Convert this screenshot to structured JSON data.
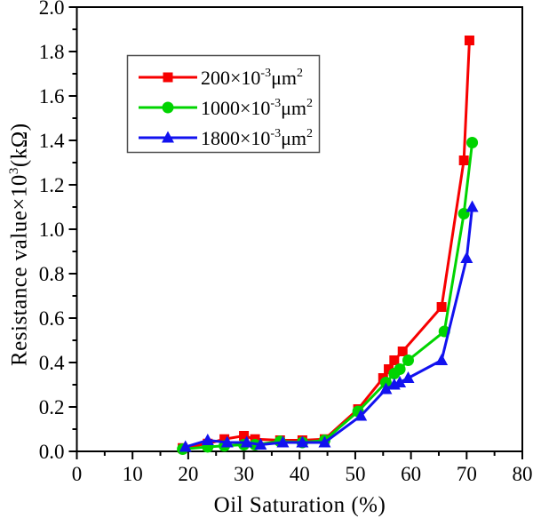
{
  "figure": {
    "background": "#ffffff",
    "frame_color": "#000000"
  },
  "chart_data": {
    "type": "line",
    "title": "",
    "xlabel": "Oil Saturation (%)",
    "ylabel": "Resistance value×10³(kΩ)",
    "ylabel_parts": {
      "prefix": "Resistance value×10",
      "sup": "3",
      "suffix": "(kΩ)"
    },
    "xlim": [
      0,
      80
    ],
    "ylim": [
      0.0,
      2.0
    ],
    "x_major_step": 10,
    "x_minor_step": 5,
    "y_major_step": 0.2,
    "y_minor_step": 0.1,
    "x_tick_labels": [
      "0",
      "10",
      "20",
      "30",
      "40",
      "50",
      "60",
      "70",
      "80"
    ],
    "y_tick_labels": [
      "0.0",
      "0.2",
      "0.4",
      "0.6",
      "0.8",
      "1.0",
      "1.2",
      "1.4",
      "1.6",
      "1.8",
      "2.0"
    ],
    "grid": false,
    "legend_position": "upper-left-inside",
    "series": [
      {
        "id": "perm200",
        "name": "200×10⁻³μm²",
        "label_parts": {
          "prefix": "200×10",
          "exp": "-3",
          "unit": "μm",
          "unit_exp": "2"
        },
        "color": "#f70000",
        "marker": "square",
        "x": [
          19,
          23.5,
          26.5,
          30,
          32,
          36.5,
          40.5,
          44.5,
          50.5,
          55,
          56,
          57,
          58.5,
          65.5,
          69.5,
          70.5
        ],
        "y": [
          0.015,
          0.035,
          0.055,
          0.07,
          0.055,
          0.05,
          0.05,
          0.055,
          0.19,
          0.33,
          0.37,
          0.41,
          0.45,
          0.65,
          1.31,
          1.85
        ]
      },
      {
        "id": "perm1000",
        "name": "1000×10⁻³μm²",
        "label_parts": {
          "prefix": "1000×10",
          "exp": "-3",
          "unit": "μm",
          "unit_exp": "2"
        },
        "color": "#00d400",
        "marker": "circle",
        "x": [
          19,
          23.5,
          26.5,
          30,
          32,
          36.5,
          40.5,
          44.5,
          50.5,
          55.5,
          57,
          58,
          59.5,
          66,
          69.5,
          71
        ],
        "y": [
          0.01,
          0.02,
          0.025,
          0.03,
          0.03,
          0.045,
          0.04,
          0.05,
          0.18,
          0.31,
          0.35,
          0.37,
          0.41,
          0.54,
          1.07,
          1.39
        ]
      },
      {
        "id": "perm1800",
        "name": "1800×10⁻³μm²",
        "label_parts": {
          "prefix": "1800×10",
          "exp": "-3",
          "unit": "μm",
          "unit_exp": "2"
        },
        "color": "#1212ef",
        "marker": "triangle",
        "x": [
          19.5,
          23.5,
          27,
          30.5,
          33,
          37,
          40.5,
          44.5,
          51,
          55.5,
          57,
          58,
          59.5,
          65.5,
          70,
          71
        ],
        "y": [
          0.02,
          0.05,
          0.04,
          0.04,
          0.03,
          0.04,
          0.04,
          0.04,
          0.16,
          0.28,
          0.3,
          0.31,
          0.33,
          0.41,
          0.87,
          1.1
        ]
      }
    ]
  }
}
